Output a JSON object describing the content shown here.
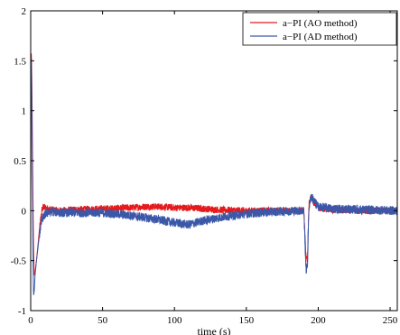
{
  "chart_data": {
    "type": "line",
    "xlabel": "time (s)",
    "ylabel": "",
    "xlim": [
      0,
      255
    ],
    "ylim": [
      -1,
      2
    ],
    "xticks": [
      0,
      50,
      100,
      150,
      200,
      250
    ],
    "yticks": [
      -1,
      -0.5,
      0,
      0.5,
      1,
      1.5,
      2
    ],
    "grid": false,
    "legend_position": "top-right",
    "series": [
      {
        "name": "a−PI (AO method)",
        "color": "#e41a1c",
        "noise": 0.035,
        "x": [
          0,
          0.4,
          0.8,
          1.2,
          1.6,
          2.0,
          2.5,
          3,
          4,
          5,
          6,
          7,
          8,
          9,
          10,
          12,
          15,
          20,
          30,
          50,
          70,
          80,
          90,
          100,
          110,
          120,
          130,
          150,
          170,
          185,
          190,
          191.5,
          192.5,
          193.5,
          195,
          197,
          200,
          210,
          230,
          255
        ],
        "y": [
          0.2,
          1.6,
          1.3,
          0.7,
          0.1,
          -0.4,
          -0.65,
          -0.62,
          -0.5,
          -0.35,
          -0.2,
          -0.08,
          0.02,
          0.04,
          0.03,
          0.02,
          0.01,
          0.0,
          0.01,
          0.02,
          0.03,
          0.04,
          0.04,
          0.03,
          0.03,
          0.02,
          0.01,
          0.0,
          0.0,
          0.0,
          0.0,
          -0.45,
          -0.5,
          0.05,
          0.14,
          0.08,
          0.03,
          0.01,
          0.0,
          0.0
        ]
      },
      {
        "name": "a−PI (AD method)",
        "color": "#3b57a8",
        "noise": 0.045,
        "x": [
          0,
          0.4,
          0.8,
          1.2,
          1.6,
          2.0,
          2.5,
          3,
          4,
          5,
          6,
          7,
          8,
          10,
          12,
          15,
          20,
          30,
          50,
          70,
          85,
          100,
          110,
          120,
          135,
          150,
          170,
          185,
          190,
          191.5,
          192.5,
          193.5,
          195,
          197,
          200,
          210,
          230,
          255
        ],
        "y": [
          0.1,
          1.55,
          1.1,
          0.3,
          -0.45,
          -0.85,
          -0.8,
          -0.65,
          -0.5,
          -0.38,
          -0.25,
          -0.15,
          -0.08,
          -0.04,
          -0.02,
          -0.01,
          -0.02,
          -0.02,
          -0.02,
          -0.05,
          -0.08,
          -0.12,
          -0.14,
          -0.1,
          -0.06,
          -0.03,
          -0.01,
          0.0,
          0.0,
          -0.6,
          -0.55,
          0.02,
          0.15,
          0.1,
          0.04,
          0.02,
          0.01,
          0.0
        ]
      }
    ]
  }
}
